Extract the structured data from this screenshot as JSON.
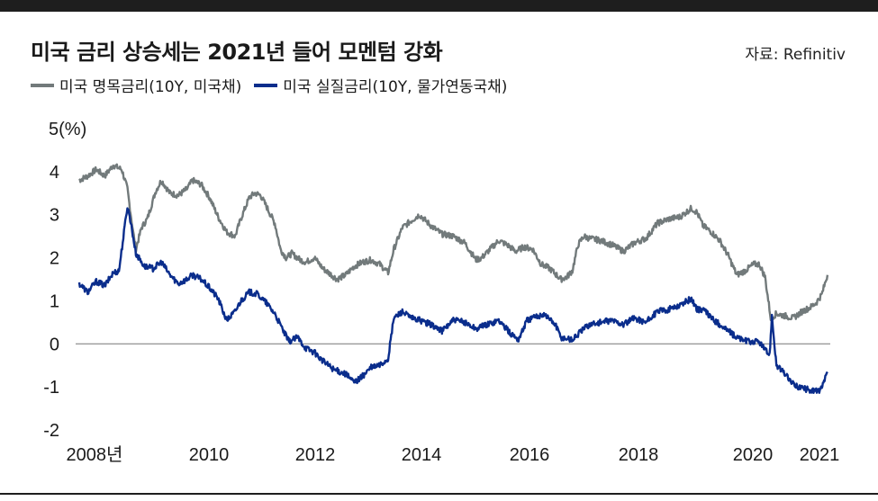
{
  "title": "미국 금리 상승세는 2021년 들어 모멘텀 강화",
  "source": "자료: Refinitiv",
  "colors": {
    "nominal": "#727a7b",
    "real": "#0a2d8c",
    "zero_line": "#777777"
  },
  "chart_data": {
    "type": "line",
    "title": "미국 금리 상승세는 2021년 들어 모멘텀 강화",
    "ylabel": "5(%)",
    "ylim": [
      -2,
      5
    ],
    "y_ticks": [
      "5(%)",
      "4",
      "3",
      "2",
      "1",
      "0",
      "-1",
      "-2"
    ],
    "x_ticks": [
      "2008년",
      "2010",
      "2012",
      "2014",
      "2016",
      "2018",
      "2020",
      "2021"
    ],
    "xlim": [
      2008.0,
      2021.25
    ],
    "grid": false,
    "legend_position": "top-left",
    "series": [
      {
        "name": "미국 명목금리(10Y, 미국채)",
        "x": [
          2008.0,
          2008.15,
          2008.3,
          2008.45,
          2008.6,
          2008.75,
          2008.85,
          2008.95,
          2009.0,
          2009.1,
          2009.2,
          2009.35,
          2009.45,
          2009.6,
          2009.75,
          2009.9,
          2010.0,
          2010.15,
          2010.3,
          2010.45,
          2010.6,
          2010.75,
          2010.85,
          2011.0,
          2011.1,
          2011.2,
          2011.3,
          2011.45,
          2011.55,
          2011.65,
          2011.75,
          2011.9,
          2012.0,
          2012.15,
          2012.3,
          2012.45,
          2012.55,
          2012.7,
          2012.85,
          2013.0,
          2013.15,
          2013.3,
          2013.45,
          2013.55,
          2013.7,
          2013.85,
          2014.0,
          2014.2,
          2014.4,
          2014.6,
          2014.8,
          2015.0,
          2015.1,
          2015.25,
          2015.4,
          2015.55,
          2015.7,
          2015.85,
          2016.0,
          2016.15,
          2016.3,
          2016.5,
          2016.6,
          2016.7,
          2016.8,
          2016.9,
          2017.0,
          2017.2,
          2017.4,
          2017.6,
          2017.8,
          2018.0,
          2018.2,
          2018.4,
          2018.6,
          2018.8,
          2018.9,
          2019.0,
          2019.15,
          2019.3,
          2019.45,
          2019.6,
          2019.75,
          2019.9,
          2020.0,
          2020.1,
          2020.2,
          2020.3,
          2020.45,
          2020.6,
          2020.75,
          2020.9,
          2021.0,
          2021.1,
          2021.2
        ],
        "values": [
          3.8,
          3.9,
          4.05,
          3.9,
          4.15,
          4.05,
          3.6,
          2.6,
          2.2,
          2.7,
          2.9,
          3.55,
          3.8,
          3.5,
          3.45,
          3.6,
          3.8,
          3.7,
          3.4,
          2.95,
          2.6,
          2.5,
          2.9,
          3.4,
          3.5,
          3.45,
          3.2,
          2.8,
          2.2,
          2.0,
          2.1,
          1.95,
          1.9,
          2.0,
          1.75,
          1.6,
          1.5,
          1.6,
          1.8,
          1.9,
          1.95,
          1.85,
          1.65,
          2.2,
          2.7,
          2.85,
          3.0,
          2.75,
          2.55,
          2.5,
          2.35,
          1.95,
          2.0,
          2.2,
          2.4,
          2.3,
          2.15,
          2.25,
          2.2,
          1.85,
          1.75,
          1.5,
          1.55,
          1.7,
          2.3,
          2.5,
          2.45,
          2.4,
          2.3,
          2.15,
          2.35,
          2.45,
          2.8,
          2.9,
          2.95,
          3.15,
          3.05,
          2.75,
          2.6,
          2.4,
          2.05,
          1.6,
          1.7,
          1.85,
          1.85,
          1.55,
          0.6,
          0.7,
          0.65,
          0.6,
          0.75,
          0.85,
          0.95,
          1.15,
          1.6
        ]
      },
      {
        "name": "미국 실질금리(10Y, 물가연동국채)",
        "x": [
          2008.0,
          2008.15,
          2008.3,
          2008.45,
          2008.6,
          2008.7,
          2008.8,
          2008.85,
          2008.9,
          2009.0,
          2009.15,
          2009.3,
          2009.45,
          2009.6,
          2009.75,
          2009.9,
          2010.0,
          2010.15,
          2010.3,
          2010.45,
          2010.6,
          2010.75,
          2010.85,
          2011.0,
          2011.15,
          2011.3,
          2011.45,
          2011.6,
          2011.7,
          2011.85,
          2012.0,
          2012.15,
          2012.3,
          2012.5,
          2012.7,
          2012.85,
          2013.0,
          2013.15,
          2013.3,
          2013.45,
          2013.55,
          2013.7,
          2013.85,
          2014.0,
          2014.2,
          2014.4,
          2014.6,
          2014.8,
          2015.0,
          2015.2,
          2015.4,
          2015.6,
          2015.75,
          2015.9,
          2016.0,
          2016.2,
          2016.4,
          2016.5,
          2016.7,
          2016.9,
          2017.0,
          2017.2,
          2017.4,
          2017.6,
          2017.8,
          2018.0,
          2018.2,
          2018.4,
          2018.6,
          2018.8,
          2018.9,
          2019.0,
          2019.2,
          2019.4,
          2019.6,
          2019.8,
          2020.0,
          2020.1,
          2020.18,
          2020.22,
          2020.3,
          2020.45,
          2020.6,
          2020.8,
          2021.0,
          2021.1,
          2021.15,
          2021.2
        ],
        "values": [
          1.4,
          1.2,
          1.45,
          1.35,
          1.65,
          1.7,
          2.7,
          3.2,
          2.9,
          2.1,
          1.8,
          1.75,
          1.9,
          1.6,
          1.4,
          1.5,
          1.6,
          1.5,
          1.3,
          1.05,
          0.55,
          0.75,
          1.0,
          1.2,
          1.15,
          0.95,
          0.7,
          0.3,
          0.05,
          0.15,
          -0.1,
          -0.2,
          -0.4,
          -0.6,
          -0.7,
          -0.9,
          -0.75,
          -0.55,
          -0.5,
          -0.35,
          0.6,
          0.75,
          0.6,
          0.55,
          0.45,
          0.3,
          0.55,
          0.5,
          0.35,
          0.45,
          0.55,
          0.25,
          0.1,
          0.55,
          0.6,
          0.7,
          0.45,
          0.15,
          0.1,
          0.35,
          0.45,
          0.5,
          0.55,
          0.45,
          0.6,
          0.5,
          0.75,
          0.8,
          0.9,
          1.05,
          0.8,
          0.8,
          0.55,
          0.35,
          0.15,
          0.05,
          0.05,
          -0.15,
          -0.25,
          0.65,
          -0.5,
          -0.7,
          -0.95,
          -1.05,
          -1.1,
          -1.05,
          -0.85,
          -0.65
        ]
      }
    ]
  }
}
